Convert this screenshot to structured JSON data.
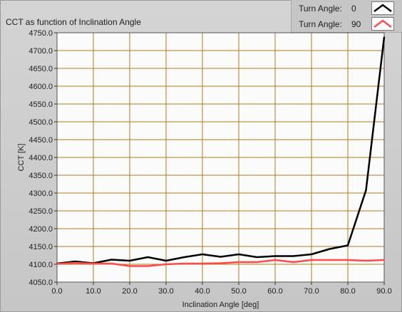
{
  "colors": {
    "plot_background": "#fbfbfb",
    "grid": "#b07c1c",
    "series_0": "#000000",
    "series_1": "#ff4a4a"
  },
  "chart_data": {
    "type": "line",
    "title": "CCT as function of Inclination Angle",
    "xlabel": "Inclination Angle [deg]",
    "ylabel": "CCT [K]",
    "xlim": [
      0,
      90
    ],
    "ylim": [
      4050,
      4750
    ],
    "grid": true,
    "legend_placement": "top-right",
    "x_ticks": [
      "0.0",
      "10.0",
      "20.0",
      "30.0",
      "40.0",
      "50.0",
      "60.0",
      "70.0",
      "80.0",
      "90.0"
    ],
    "y_ticks": [
      "4050.0",
      "4100.0",
      "4150.0",
      "4200.0",
      "4250.0",
      "4300.0",
      "4350.0",
      "4400.0",
      "4450.0",
      "4500.0",
      "4550.0",
      "4600.0",
      "4650.0",
      "4700.0",
      "4750.0"
    ],
    "x": [
      0,
      5,
      10,
      15,
      20,
      25,
      30,
      35,
      40,
      45,
      50,
      55,
      60,
      65,
      70,
      75,
      80,
      85,
      90
    ],
    "series": [
      {
        "name": "Turn Angle:",
        "value": "0",
        "color": "#000000",
        "values": [
          4102,
          4108,
          4103,
          4113,
          4110,
          4120,
          4110,
          4120,
          4128,
          4121,
          4128,
          4120,
          4123,
          4123,
          4128,
          4143,
          4153,
          4308,
          4738
        ]
      },
      {
        "name": "Turn Angle:",
        "value": "90",
        "color": "#ff4a4a",
        "values": [
          4101,
          4104,
          4102,
          4102,
          4095,
          4095,
          4100,
          4102,
          4102,
          4103,
          4106,
          4106,
          4112,
          4106,
          4112,
          4112,
          4112,
          4110,
          4112
        ]
      }
    ]
  }
}
